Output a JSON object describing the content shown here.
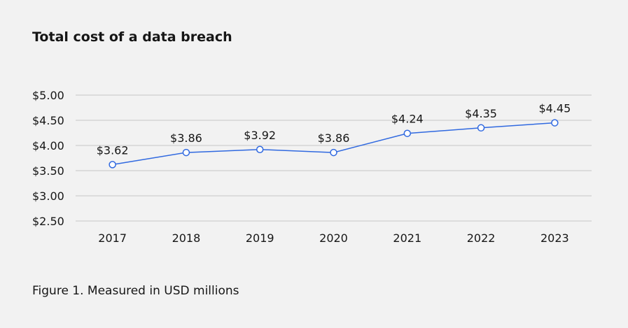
{
  "chart_data": {
    "type": "line",
    "title": "Total cost of a data breach",
    "caption": "Figure 1. Measured in USD millions",
    "xlabel": "",
    "ylabel": "",
    "categories": [
      "2017",
      "2018",
      "2019",
      "2020",
      "2021",
      "2022",
      "2023"
    ],
    "values": [
      3.62,
      3.86,
      3.92,
      3.86,
      4.24,
      4.35,
      4.45
    ],
    "data_labels": [
      "$3.62",
      "$3.86",
      "$3.92",
      "$3.86",
      "$4.24",
      "$4.35",
      "$4.45"
    ],
    "yticks": [
      2.5,
      3.0,
      3.5,
      4.0,
      4.5,
      5.0
    ],
    "ytick_labels": [
      "$2.50",
      "$3.00",
      "$3.50",
      "$4.00",
      "$4.50",
      "$5.00"
    ],
    "ylim": [
      2.5,
      5.0
    ],
    "grid": true,
    "line_color": "#3069e0",
    "grid_color": "#c6c6c6"
  }
}
